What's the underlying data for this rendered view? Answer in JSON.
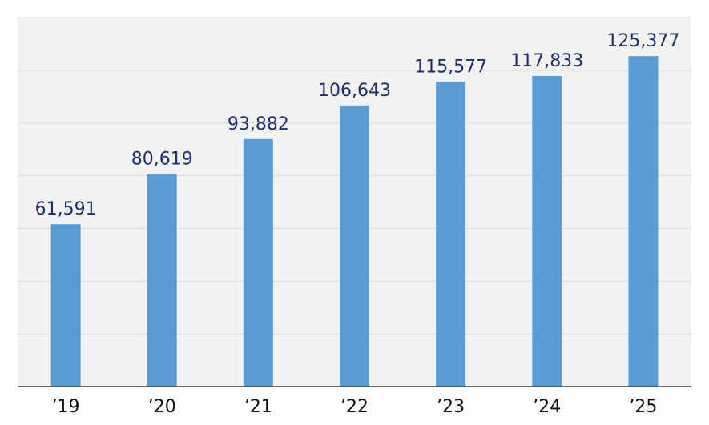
{
  "chart_data": {
    "type": "bar",
    "categories": [
      "’19",
      "’20",
      "’21",
      "’22",
      "’23",
      "’24",
      "’25"
    ],
    "values": [
      61591,
      80619,
      93882,
      106643,
      115577,
      117833,
      125377
    ],
    "value_labels": [
      "61,591",
      "80,619",
      "93,882",
      "106,643",
      "115,577",
      "117,833",
      "125,377"
    ],
    "title": "",
    "xlabel": "",
    "ylabel": "",
    "ylim": [
      0,
      140000
    ],
    "grid": true,
    "legend": "none",
    "colors": {
      "bar": "#5b9bd5",
      "plot_background": "#f2f2f2",
      "gridline": "#d9d9d9",
      "axis": "#404040",
      "value_label": "#1f2f6b",
      "tick_label": "#111111"
    }
  }
}
